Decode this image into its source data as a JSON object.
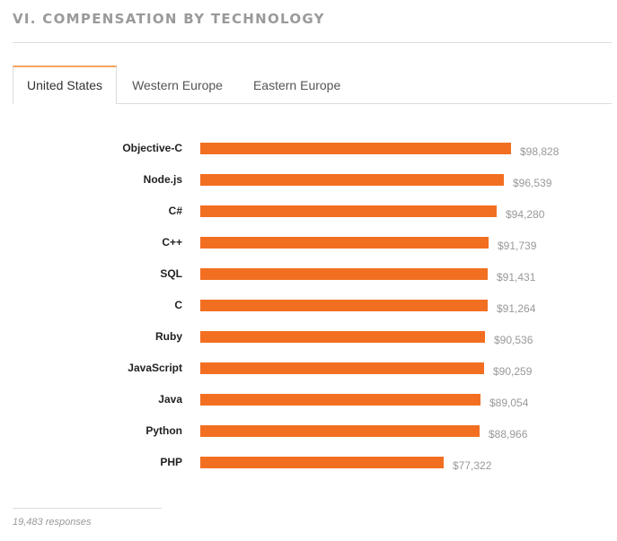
{
  "section": {
    "title": "VI. COMPENSATION BY TECHNOLOGY"
  },
  "tabs": [
    {
      "label": "United States",
      "active": true
    },
    {
      "label": "Western Europe",
      "active": false
    },
    {
      "label": "Eastern Europe",
      "active": false
    }
  ],
  "colors": {
    "bar": "#f26f21",
    "accent": "#f7a35c"
  },
  "chart_data": {
    "type": "bar",
    "orientation": "horizontal",
    "title": "",
    "xlabel": "",
    "ylabel": "",
    "categories": [
      "Objective-C",
      "Node.js",
      "C#",
      "C++",
      "SQL",
      "C",
      "Ruby",
      "JavaScript",
      "Java",
      "Python",
      "PHP"
    ],
    "values": [
      98828,
      96539,
      94280,
      91739,
      91431,
      91264,
      90536,
      90259,
      89054,
      88966,
      77322
    ],
    "value_labels": [
      "$98,828",
      "$96,539",
      "$94,280",
      "$91,739",
      "$91,431",
      "$91,264",
      "$90,536",
      "$90,259",
      "$89,054",
      "$88,966",
      "$77,322"
    ],
    "xlim": [
      0,
      98828
    ],
    "grid": false,
    "legend": "none"
  },
  "footer": {
    "responses": "19,483 responses"
  }
}
